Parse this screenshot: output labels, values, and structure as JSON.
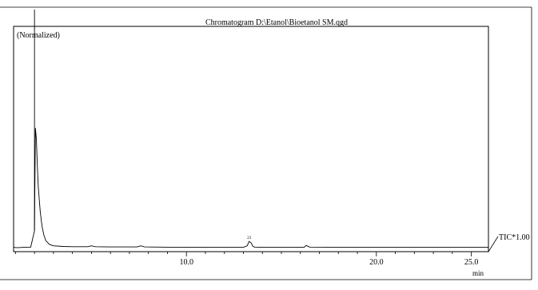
{
  "chart_data": {
    "type": "line",
    "title": "Chromatogram  D:\\Etanol\\Bioetanol SM.qgd",
    "ylabel": "(Normalized)",
    "xlabel": "min",
    "series_label": "TIC*1.00",
    "peak_label": "23",
    "xlim": [
      0.9,
      25.9
    ],
    "ylim": [
      0,
      100
    ],
    "x_ticks": [
      10.0,
      20.0,
      25.0
    ],
    "x_tick_labels": [
      "10.0",
      "20.0",
      "25.0"
    ],
    "grid": false,
    "series": [
      {
        "x": [
          0.9,
          1.0,
          1.2,
          1.4,
          1.6,
          1.8,
          2.0,
          2.05,
          2.1,
          2.15,
          2.2,
          2.3,
          2.4,
          2.5,
          2.6,
          2.8,
          3.0,
          3.5,
          4.0,
          4.8,
          5.0,
          5.2,
          6.0,
          7.4,
          7.6,
          7.8,
          9.0,
          10.0,
          11.0,
          12.0,
          13.0,
          13.2,
          13.3,
          13.4,
          13.5,
          13.6,
          13.8,
          14.5,
          15.5,
          16.2,
          16.3,
          16.5,
          17.5,
          19.0,
          20.0,
          21.5,
          23.0,
          24.5,
          25.5,
          25.9
        ],
        "y": [
          0.6,
          0.4,
          0.4,
          0.5,
          0.5,
          0.6,
          8,
          55,
          50,
          38,
          28,
          17,
          10,
          6,
          3.5,
          1.8,
          1.2,
          0.9,
          0.8,
          0.8,
          1.2,
          0.8,
          0.7,
          0.7,
          1.2,
          0.7,
          0.6,
          0.6,
          0.5,
          0.5,
          0.5,
          1.2,
          3.2,
          2.6,
          1.0,
          0.6,
          0.5,
          0.5,
          0.5,
          0.5,
          1.4,
          0.6,
          0.5,
          0.5,
          0.5,
          0.5,
          0.5,
          0.5,
          0.5,
          0.5
        ]
      }
    ],
    "clipped_peak_x": 2.0
  }
}
